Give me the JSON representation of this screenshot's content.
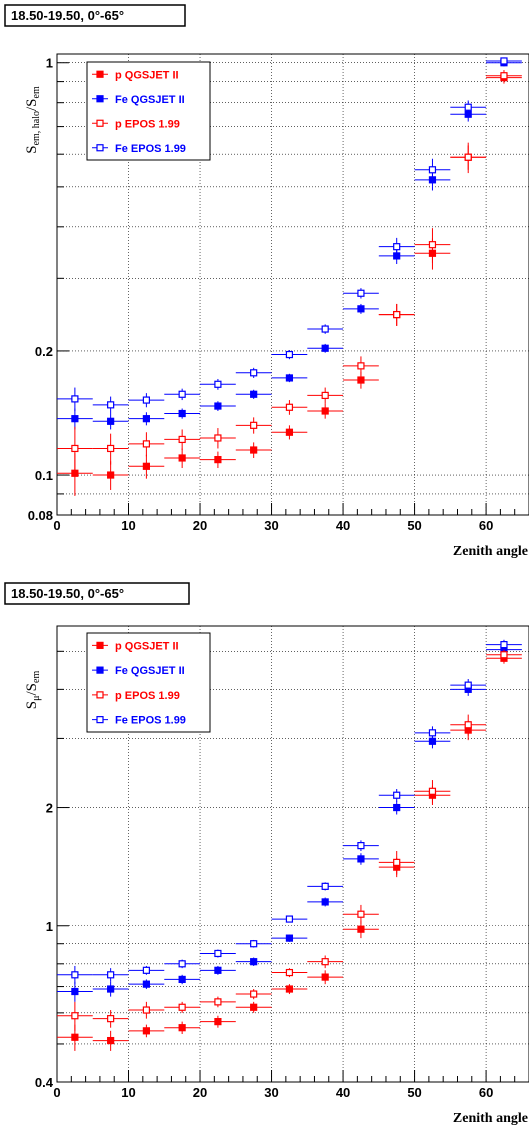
{
  "chart_data": [
    {
      "type": "scatter",
      "panel_label": "18.50-19.50, 0°-65°",
      "xlabel": "Zenith angle",
      "ylabel_main": "S",
      "ylabel_sub": "em, halo",
      "ylabel_den_main": "S",
      "ylabel_den_sub": "em",
      "xlim": [
        0,
        66
      ],
      "ylim": [
        0.08,
        1.05
      ],
      "y_scale": "log",
      "grid": true,
      "legend_position": "top-left",
      "x_ticks": [
        0,
        10,
        20,
        30,
        40,
        50,
        60
      ],
      "y_tick_labels": [
        {
          "value": 0.08,
          "label": "0.08"
        },
        {
          "value": 0.1,
          "label": "0.1"
        },
        {
          "value": 0.2,
          "label": "0.2"
        },
        {
          "value": 1,
          "label": "1"
        }
      ],
      "x": [
        2.5,
        7.5,
        12.5,
        17.5,
        22.5,
        27.5,
        32.5,
        37.5,
        42.5,
        47.5,
        52.5,
        57.5,
        62.5
      ],
      "series": [
        {
          "name": "p QGSJET II",
          "color": "#ff0000",
          "marker": "filled",
          "values": [
            0.101,
            0.1,
            0.105,
            0.11,
            0.109,
            0.115,
            0.127,
            0.143,
            0.17,
            0.245,
            0.345,
            0.59,
            0.92
          ],
          "errors": [
            0.012,
            0.008,
            0.007,
            0.006,
            0.005,
            0.005,
            0.005,
            0.006,
            0.008,
            0.015,
            0.03,
            0.05,
            0.03
          ]
        },
        {
          "name": "Fe QGSJET II",
          "color": "#0000ff",
          "marker": "filled",
          "values": [
            0.137,
            0.135,
            0.137,
            0.141,
            0.147,
            0.157,
            0.172,
            0.203,
            0.253,
            0.34,
            0.52,
            0.75,
            1.0
          ],
          "errors": [
            0.008,
            0.006,
            0.005,
            0.004,
            0.004,
            0.004,
            0.004,
            0.005,
            0.007,
            0.015,
            0.03,
            0.03,
            0.02
          ]
        },
        {
          "name": "p EPOS 1.99",
          "color": "#ff0000",
          "marker": "open",
          "values": [
            0.116,
            0.116,
            0.119,
            0.122,
            0.123,
            0.132,
            0.146,
            0.156,
            0.184,
            0.245,
            0.362,
            0.59,
            0.93
          ],
          "errors": [
            0.015,
            0.01,
            0.008,
            0.007,
            0.007,
            0.006,
            0.006,
            0.007,
            0.01,
            0.015,
            0.035,
            0.04,
            0.03
          ]
        },
        {
          "name": "Fe EPOS 1.99",
          "color": "#0000ff",
          "marker": "open",
          "values": [
            0.153,
            0.148,
            0.152,
            0.157,
            0.166,
            0.177,
            0.196,
            0.226,
            0.276,
            0.358,
            0.55,
            0.78,
            1.01
          ],
          "errors": [
            0.01,
            0.007,
            0.006,
            0.005,
            0.005,
            0.005,
            0.005,
            0.006,
            0.008,
            0.018,
            0.035,
            0.03,
            0.02
          ]
        }
      ]
    },
    {
      "type": "scatter",
      "panel_label": "18.50-19.50,   0°-65°",
      "xlabel": "Zenith angle",
      "ylabel_main": "S",
      "ylabel_sub": "μ",
      "ylabel_den_main": "S",
      "ylabel_den_sub": "em",
      "xlim": [
        0,
        66
      ],
      "ylim": [
        0.4,
        5.8
      ],
      "y_scale": "log",
      "grid": true,
      "legend_position": "top-left",
      "x_ticks": [
        0,
        10,
        20,
        30,
        40,
        50,
        60
      ],
      "y_tick_labels": [
        {
          "value": 0.4,
          "label": "0.4"
        },
        {
          "value": 1,
          "label": "1"
        },
        {
          "value": 2,
          "label": "2"
        }
      ],
      "x": [
        2.5,
        7.5,
        12.5,
        17.5,
        22.5,
        27.5,
        32.5,
        37.5,
        42.5,
        47.5,
        52.5,
        57.5,
        62.5
      ],
      "series": [
        {
          "name": "p QGSJET II",
          "color": "#ff0000",
          "marker": "filled",
          "values": [
            0.52,
            0.51,
            0.54,
            0.55,
            0.57,
            0.62,
            0.69,
            0.74,
            0.98,
            1.41,
            2.15,
            3.15,
            4.8
          ],
          "errors": [
            0.04,
            0.03,
            0.02,
            0.02,
            0.02,
            0.02,
            0.02,
            0.03,
            0.05,
            0.08,
            0.12,
            0.18,
            0.15
          ]
        },
        {
          "name": "Fe QGSJET II",
          "color": "#0000ff",
          "marker": "filled",
          "values": [
            0.68,
            0.69,
            0.71,
            0.73,
            0.77,
            0.81,
            0.93,
            1.15,
            1.48,
            2.0,
            2.95,
            4.0,
            5.05
          ],
          "errors": [
            0.04,
            0.03,
            0.02,
            0.02,
            0.02,
            0.02,
            0.02,
            0.03,
            0.05,
            0.08,
            0.12,
            0.15,
            0.15
          ]
        },
        {
          "name": "p EPOS 1.99",
          "color": "#ff0000",
          "marker": "open",
          "values": [
            0.59,
            0.58,
            0.61,
            0.62,
            0.64,
            0.67,
            0.76,
            0.81,
            1.07,
            1.45,
            2.2,
            3.25,
            4.9
          ],
          "errors": [
            0.05,
            0.03,
            0.03,
            0.02,
            0.02,
            0.02,
            0.02,
            0.03,
            0.06,
            0.1,
            0.15,
            0.2,
            0.15
          ]
        },
        {
          "name": "Fe EPOS 1.99",
          "color": "#0000ff",
          "marker": "open",
          "values": [
            0.75,
            0.75,
            0.77,
            0.8,
            0.85,
            0.9,
            1.04,
            1.26,
            1.6,
            2.15,
            3.1,
            4.1,
            5.2
          ],
          "errors": [
            0.04,
            0.03,
            0.02,
            0.02,
            0.02,
            0.02,
            0.02,
            0.03,
            0.05,
            0.08,
            0.12,
            0.15,
            0.15
          ]
        }
      ]
    }
  ]
}
